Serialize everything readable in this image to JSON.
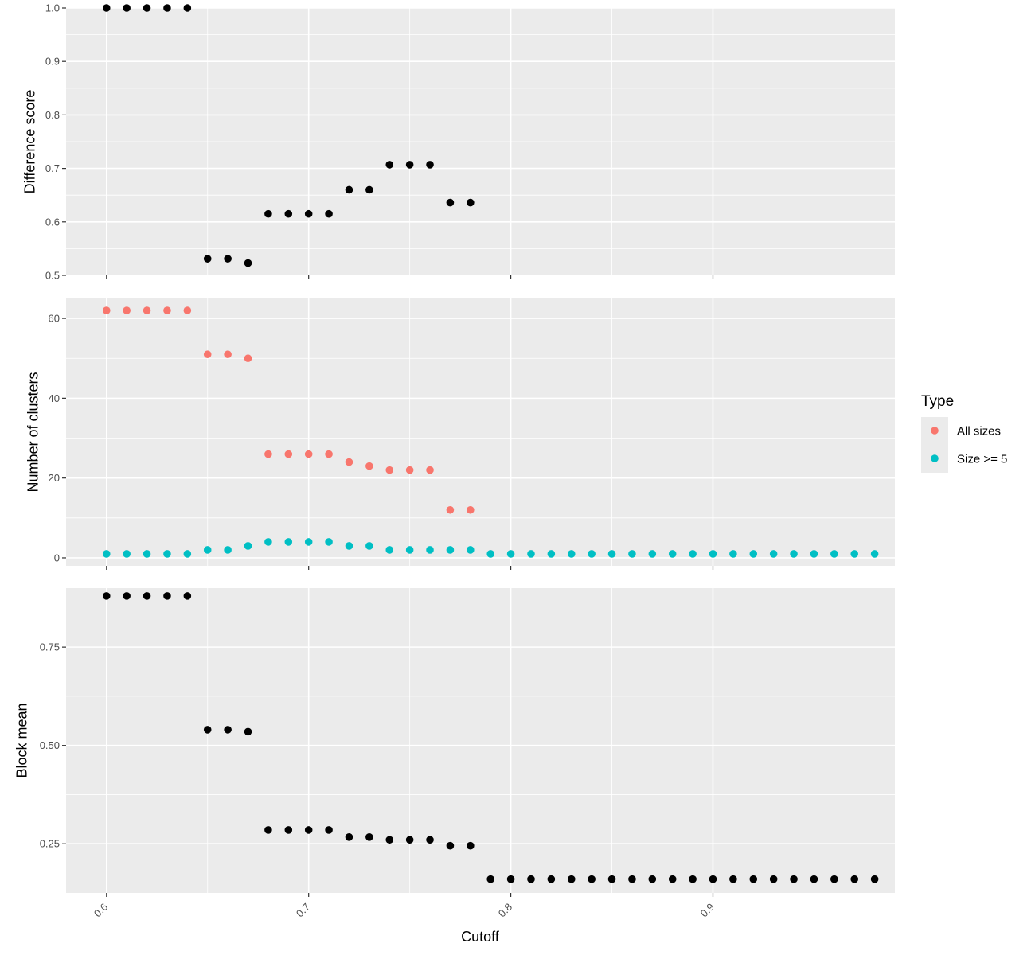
{
  "chart_data": {
    "type": "scatter",
    "x_label": "Cutoff",
    "x_range": [
      0.58,
      0.99
    ],
    "x_ticks": [
      0.6,
      0.7,
      0.8,
      0.9
    ],
    "x_tick_labels": [
      "0.6",
      "0.7",
      "0.8",
      "0.9"
    ],
    "grid": true,
    "colors": {
      "panel_bg": "#ebebeb",
      "grid": "#ffffff",
      "point_default": "#000000"
    },
    "legend": {
      "title": "Type",
      "placement": "right",
      "entries": [
        {
          "label": "All sizes",
          "color": "#f8766d"
        },
        {
          "label": "Size >= 5",
          "color": "#00bfc4"
        }
      ]
    },
    "panels": [
      {
        "y_label": "Difference score",
        "y_range": [
          0.5,
          1.0
        ],
        "y_ticks": [
          0.5,
          0.6,
          0.7,
          0.8,
          0.9,
          1.0
        ],
        "y_tick_labels": [
          "0.5",
          "0.6",
          "0.7",
          "0.8",
          "0.9",
          "1.0"
        ],
        "show_x_labels": false,
        "series": [
          {
            "name": "",
            "color": "#000000",
            "x": [
              0.6,
              0.61,
              0.62,
              0.63,
              0.64,
              0.65,
              0.66,
              0.67,
              0.68,
              0.69,
              0.7,
              0.71,
              0.72,
              0.73,
              0.74,
              0.75,
              0.76,
              0.77,
              0.78
            ],
            "y": [
              1.0,
              1.0,
              1.0,
              1.0,
              1.0,
              0.531,
              0.531,
              0.523,
              0.615,
              0.615,
              0.615,
              0.615,
              0.66,
              0.66,
              0.707,
              0.707,
              0.707,
              0.636,
              0.636
            ]
          }
        ]
      },
      {
        "y_label": "Number of clusters",
        "y_range": [
          -2,
          65
        ],
        "y_ticks": [
          0,
          20,
          40,
          60
        ],
        "y_tick_labels": [
          "0",
          "20",
          "40",
          "60"
        ],
        "show_x_labels": false,
        "series": [
          {
            "name": "All sizes",
            "color": "#f8766d",
            "x": [
              0.6,
              0.61,
              0.62,
              0.63,
              0.64,
              0.65,
              0.66,
              0.67,
              0.68,
              0.69,
              0.7,
              0.71,
              0.72,
              0.73,
              0.74,
              0.75,
              0.76,
              0.77,
              0.78
            ],
            "y": [
              62,
              62,
              62,
              62,
              62,
              51,
              51,
              50,
              26,
              26,
              26,
              26,
              24,
              23,
              22,
              22,
              22,
              12,
              12
            ]
          },
          {
            "name": "Size >= 5",
            "color": "#00bfc4",
            "x": [
              0.6,
              0.61,
              0.62,
              0.63,
              0.64,
              0.65,
              0.66,
              0.67,
              0.68,
              0.69,
              0.7,
              0.71,
              0.72,
              0.73,
              0.74,
              0.75,
              0.76,
              0.77,
              0.78,
              0.79,
              0.8,
              0.81,
              0.82,
              0.83,
              0.84,
              0.85,
              0.86,
              0.87,
              0.88,
              0.89,
              0.9,
              0.91,
              0.92,
              0.93,
              0.94,
              0.95,
              0.96,
              0.97,
              0.98
            ],
            "y": [
              1,
              1,
              1,
              1,
              1,
              2,
              2,
              3,
              4,
              4,
              4,
              4,
              3,
              3,
              2,
              2,
              2,
              2,
              2,
              1,
              1,
              1,
              1,
              1,
              1,
              1,
              1,
              1,
              1,
              1,
              1,
              1,
              1,
              1,
              1,
              1,
              1,
              1,
              1
            ]
          }
        ]
      },
      {
        "y_label": "Block mean",
        "y_range": [
          0.125,
          0.9
        ],
        "y_ticks": [
          0.25,
          0.5,
          0.75
        ],
        "y_tick_labels": [
          "0.25",
          "0.50",
          "0.75"
        ],
        "show_x_labels": true,
        "series": [
          {
            "name": "",
            "color": "#000000",
            "x": [
              0.6,
              0.61,
              0.62,
              0.63,
              0.64,
              0.65,
              0.66,
              0.67,
              0.68,
              0.69,
              0.7,
              0.71,
              0.72,
              0.73,
              0.74,
              0.75,
              0.76,
              0.77,
              0.78,
              0.79,
              0.8,
              0.81,
              0.82,
              0.83,
              0.84,
              0.85,
              0.86,
              0.87,
              0.88,
              0.89,
              0.9,
              0.91,
              0.92,
              0.93,
              0.94,
              0.95,
              0.96,
              0.97,
              0.98
            ],
            "y": [
              0.88,
              0.88,
              0.88,
              0.88,
              0.88,
              0.54,
              0.54,
              0.535,
              0.285,
              0.285,
              0.285,
              0.285,
              0.267,
              0.267,
              0.26,
              0.26,
              0.26,
              0.245,
              0.245,
              0.16,
              0.16,
              0.16,
              0.16,
              0.16,
              0.16,
              0.16,
              0.16,
              0.16,
              0.16,
              0.16,
              0.16,
              0.16,
              0.16,
              0.16,
              0.16,
              0.16,
              0.16,
              0.16,
              0.16
            ]
          }
        ]
      }
    ]
  }
}
